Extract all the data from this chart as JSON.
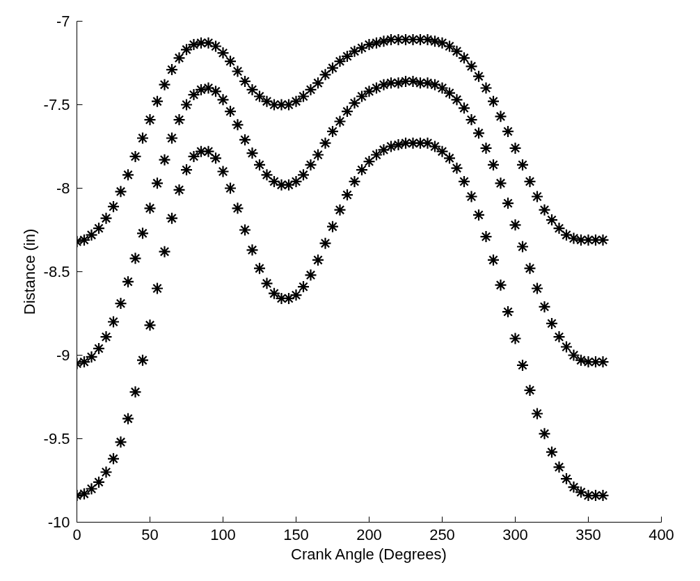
{
  "chart_data": {
    "type": "scatter",
    "xlabel": "Crank Angle (Degrees)",
    "ylabel": "Distance (in)",
    "xlim": [
      0,
      400
    ],
    "xticks": [
      0,
      50,
      100,
      150,
      200,
      250,
      300,
      350,
      400
    ],
    "ylim": [
      -10,
      -7
    ],
    "yticks": [
      -10,
      -9.5,
      -9,
      -8.5,
      -8,
      -7.5,
      -7
    ],
    "grid": false,
    "marker": "cross",
    "x": [
      0,
      5,
      10,
      15,
      20,
      25,
      30,
      35,
      40,
      45,
      50,
      55,
      60,
      65,
      70,
      75,
      80,
      85,
      90,
      95,
      100,
      105,
      110,
      115,
      120,
      125,
      130,
      135,
      140,
      145,
      150,
      155,
      160,
      165,
      170,
      175,
      180,
      185,
      190,
      195,
      200,
      205,
      210,
      215,
      220,
      225,
      230,
      235,
      240,
      245,
      250,
      255,
      260,
      265,
      270,
      275,
      280,
      285,
      290,
      295,
      300,
      305,
      310,
      315,
      320,
      325,
      330,
      335,
      340,
      345,
      350,
      355,
      360
    ],
    "series": [
      {
        "color": "#000000",
        "values": [
          -8.32,
          -8.31,
          -8.28,
          -8.24,
          -8.18,
          -8.11,
          -8.02,
          -7.92,
          -7.81,
          -7.7,
          -7.59,
          -7.48,
          -7.38,
          -7.29,
          -7.22,
          -7.17,
          -7.14,
          -7.13,
          -7.13,
          -7.15,
          -7.19,
          -7.24,
          -7.3,
          -7.36,
          -7.41,
          -7.45,
          -7.48,
          -7.5,
          -7.5,
          -7.5,
          -7.48,
          -7.45,
          -7.41,
          -7.37,
          -7.32,
          -7.28,
          -7.24,
          -7.21,
          -7.18,
          -7.16,
          -7.14,
          -7.13,
          -7.12,
          -7.11,
          -7.11,
          -7.11,
          -7.11,
          -7.11,
          -7.11,
          -7.12,
          -7.13,
          -7.15,
          -7.18,
          -7.22,
          -7.27,
          -7.33,
          -7.4,
          -7.48,
          -7.57,
          -7.66,
          -7.76,
          -7.86,
          -7.96,
          -8.05,
          -8.13,
          -8.19,
          -8.24,
          -8.28,
          -8.3,
          -8.31,
          -8.31,
          -8.31,
          -8.31
        ]
      },
      {
        "color": "#000000",
        "values": [
          -9.05,
          -9.04,
          -9.01,
          -8.96,
          -8.89,
          -8.8,
          -8.69,
          -8.56,
          -8.42,
          -8.27,
          -8.12,
          -7.97,
          -7.83,
          -7.7,
          -7.59,
          -7.5,
          -7.44,
          -7.41,
          -7.4,
          -7.42,
          -7.47,
          -7.54,
          -7.62,
          -7.71,
          -7.79,
          -7.86,
          -7.92,
          -7.96,
          -7.98,
          -7.98,
          -7.96,
          -7.92,
          -7.86,
          -7.8,
          -7.73,
          -7.66,
          -7.6,
          -7.54,
          -7.49,
          -7.45,
          -7.42,
          -7.4,
          -7.38,
          -7.37,
          -7.37,
          -7.36,
          -7.36,
          -7.37,
          -7.37,
          -7.38,
          -7.4,
          -7.43,
          -7.47,
          -7.52,
          -7.59,
          -7.67,
          -7.76,
          -7.86,
          -7.97,
          -8.09,
          -8.22,
          -8.35,
          -8.48,
          -8.6,
          -8.71,
          -8.81,
          -8.89,
          -8.95,
          -9.0,
          -9.03,
          -9.04,
          -9.04,
          -9.04
        ]
      },
      {
        "color": "#000000",
        "values": [
          -9.84,
          -9.83,
          -9.8,
          -9.76,
          -9.7,
          -9.62,
          -9.52,
          -9.38,
          -9.22,
          -9.03,
          -8.82,
          -8.6,
          -8.38,
          -8.18,
          -8.01,
          -7.89,
          -7.81,
          -7.78,
          -7.78,
          -7.82,
          -7.9,
          -8.0,
          -8.12,
          -8.25,
          -8.37,
          -8.48,
          -8.57,
          -8.63,
          -8.66,
          -8.66,
          -8.64,
          -8.59,
          -8.52,
          -8.43,
          -8.33,
          -8.23,
          -8.13,
          -8.04,
          -7.96,
          -7.89,
          -7.84,
          -7.8,
          -7.77,
          -7.75,
          -7.74,
          -7.73,
          -7.73,
          -7.73,
          -7.73,
          -7.75,
          -7.78,
          -7.82,
          -7.88,
          -7.96,
          -8.05,
          -8.16,
          -8.29,
          -8.43,
          -8.58,
          -8.74,
          -8.9,
          -9.06,
          -9.21,
          -9.35,
          -9.47,
          -9.58,
          -9.67,
          -9.74,
          -9.79,
          -9.82,
          -9.84,
          -9.84,
          -9.84
        ]
      }
    ]
  }
}
